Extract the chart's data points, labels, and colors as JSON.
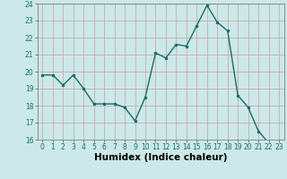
{
  "x": [
    0,
    1,
    2,
    3,
    4,
    5,
    6,
    7,
    8,
    9,
    10,
    11,
    12,
    13,
    14,
    15,
    16,
    17,
    18,
    19,
    20,
    21,
    22,
    23
  ],
  "y": [
    19.8,
    19.8,
    19.2,
    19.8,
    19.0,
    18.1,
    18.1,
    18.1,
    17.9,
    17.1,
    18.5,
    21.1,
    20.8,
    21.6,
    21.5,
    22.7,
    23.9,
    22.9,
    22.4,
    18.6,
    17.9,
    16.5,
    15.8,
    15.8
  ],
  "line_color": "#1a6b6b",
  "marker_color": "#1a6b6b",
  "bg_color": "#cce8e8",
  "grid_color": "#c8a0a0",
  "xlabel": "Humidex (Indice chaleur)",
  "ylim": [
    16,
    24
  ],
  "xlim": [
    -0.5,
    23.5
  ],
  "yticks": [
    16,
    17,
    18,
    19,
    20,
    21,
    22,
    23,
    24
  ],
  "xticks": [
    0,
    1,
    2,
    3,
    4,
    5,
    6,
    7,
    8,
    9,
    10,
    11,
    12,
    13,
    14,
    15,
    16,
    17,
    18,
    19,
    20,
    21,
    22,
    23
  ],
  "tick_label_fontsize": 5.5,
  "xlabel_fontsize": 7.5
}
